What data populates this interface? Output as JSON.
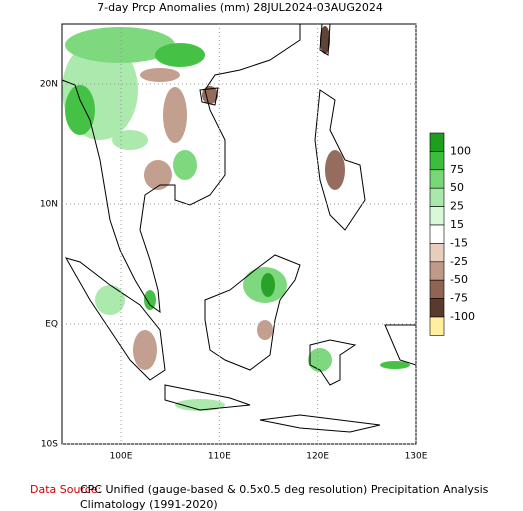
{
  "title": "7-day Prcp Anomalies (mm) 28JUL2024-03AUG2024",
  "map": {
    "xlim": [
      94,
      130
    ],
    "ylim": [
      -10,
      25
    ],
    "xticks": [
      {
        "value": 100,
        "label": "100E"
      },
      {
        "value": 110,
        "label": "110E"
      },
      {
        "value": 120,
        "label": "120E"
      },
      {
        "value": 130,
        "label": "130E"
      }
    ],
    "yticks": [
      {
        "value": 20,
        "label": "20N"
      },
      {
        "value": 10,
        "label": "10N"
      },
      {
        "value": 0,
        "label": "EQ"
      },
      {
        "value": -10,
        "label": "10S"
      }
    ],
    "grid": true
  },
  "colorbar": {
    "levels": [
      100,
      75,
      50,
      25,
      15,
      -15,
      -25,
      -50,
      -75,
      -100
    ],
    "colors": [
      "#1e9e1e",
      "#3cbe3c",
      "#78d878",
      "#a8e8a8",
      "#d8f8d8",
      "#ffffff",
      "#e6cdbe",
      "#bf9a88",
      "#8f6454",
      "#5a3a2c",
      "#fff0a0"
    ]
  },
  "footer": {
    "source_label": "Data Source:",
    "source": "CPC Unified (gauge-based & 0.5x0.5 deg resolution) Precipitation Analysis",
    "climatology": "Climatology (1991-2020)"
  }
}
